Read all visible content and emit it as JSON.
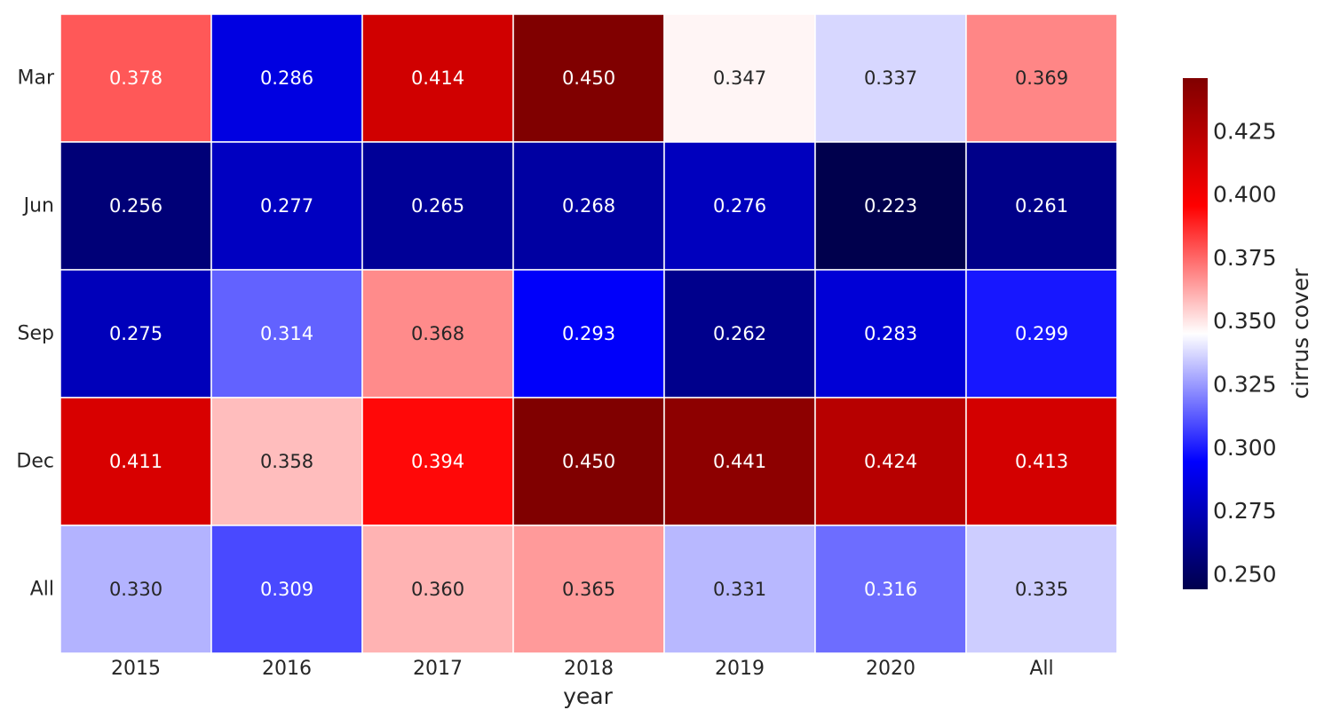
{
  "chart_data": {
    "type": "heatmap",
    "title": "",
    "xlabel": "year",
    "ylabel": "",
    "x_categories": [
      "2015",
      "2016",
      "2017",
      "2018",
      "2019",
      "2020",
      "All"
    ],
    "y_categories": [
      "Mar",
      "Jun",
      "Sep",
      "Dec",
      "All"
    ],
    "values": [
      [
        0.378,
        0.286,
        0.414,
        0.45,
        0.347,
        0.337,
        0.369
      ],
      [
        0.256,
        0.277,
        0.265,
        0.268,
        0.276,
        0.223,
        0.261
      ],
      [
        0.275,
        0.314,
        0.368,
        0.293,
        0.262,
        0.283,
        0.299
      ],
      [
        0.411,
        0.358,
        0.394,
        0.45,
        0.441,
        0.424,
        0.413
      ],
      [
        0.33,
        0.309,
        0.36,
        0.365,
        0.331,
        0.316,
        0.335
      ]
    ],
    "value_labels": [
      [
        "0.378",
        "0.286",
        "0.414",
        "0.450",
        "0.347",
        "0.337",
        "0.369"
      ],
      [
        "0.256",
        "0.277",
        "0.265",
        "0.268",
        "0.276",
        "0.223",
        "0.261"
      ],
      [
        "0.275",
        "0.314",
        "0.368",
        "0.293",
        "0.262",
        "0.283",
        "0.299"
      ],
      [
        "0.411",
        "0.358",
        "0.394",
        "0.450",
        "0.441",
        "0.424",
        "0.413"
      ],
      [
        "0.330",
        "0.309",
        "0.360",
        "0.365",
        "0.331",
        "0.316",
        "0.335"
      ]
    ],
    "colormap": "seismic",
    "vmin": 0.244,
    "vmax": 0.446,
    "colorbar": {
      "label": "cirrus cover",
      "ticks": [
        0.25,
        0.275,
        0.3,
        0.325,
        0.35,
        0.375,
        0.4,
        0.425
      ],
      "tick_labels": [
        "0.250",
        "0.275",
        "0.300",
        "0.325",
        "0.350",
        "0.375",
        "0.400",
        "0.425"
      ]
    }
  }
}
